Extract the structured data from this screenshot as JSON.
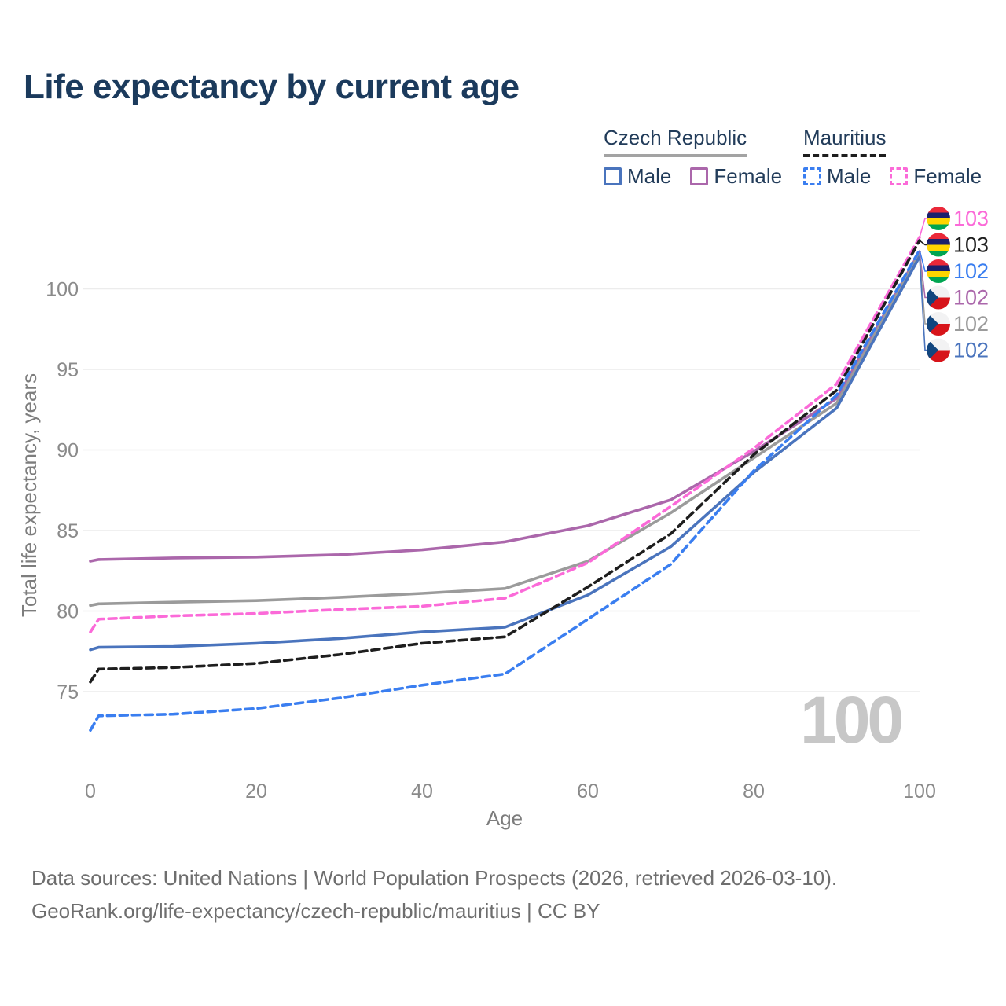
{
  "title": "Life expectancy by current age",
  "legend": {
    "groups": [
      {
        "country": "Czech Republic",
        "line_style": "solid",
        "underline_color": "#a3a3a3",
        "items": [
          {
            "label": "Male",
            "color": "#4a74bd",
            "style": "solid"
          },
          {
            "label": "Female",
            "color": "#ab67ab",
            "style": "solid"
          }
        ]
      },
      {
        "country": "Mauritius",
        "line_style": "dashed",
        "underline_color": "#1e1e1e",
        "items": [
          {
            "label": "Male",
            "color": "#3a7ef0",
            "style": "dashed"
          },
          {
            "label": "Female",
            "color": "#fb6ad8",
            "style": "dashed"
          }
        ]
      }
    ]
  },
  "watermark": "100",
  "footer": {
    "line1": "Data sources: United Nations | World Population Prospects (2026, retrieved 2026-03-10).",
    "line2": "GeoRank.org/life-expectancy/czech-republic/mauritius | CC BY"
  },
  "chart_data": {
    "type": "line",
    "title": "Life expectancy by current age",
    "xlabel": "Age",
    "ylabel": "Total life expectancy, years",
    "xlim": [
      0,
      100
    ],
    "ylim": [
      72,
      104
    ],
    "x_ticks": [
      0,
      20,
      40,
      60,
      80,
      100
    ],
    "y_ticks": [
      75,
      80,
      85,
      90,
      95,
      100
    ],
    "grid": true,
    "legend_position": "top-right",
    "x": [
      0,
      1,
      10,
      20,
      30,
      40,
      50,
      60,
      70,
      80,
      90,
      100
    ],
    "series": [
      {
        "name": "Czech Republic Female",
        "country": "Czech Republic",
        "sex": "Female",
        "style": "solid",
        "color": "#ab67ab",
        "end_label": "102",
        "values": [
          83.1,
          83.2,
          83.3,
          83.35,
          83.5,
          83.8,
          84.3,
          85.3,
          86.9,
          89.9,
          93.2,
          102.3
        ]
      },
      {
        "name": "Czech Republic Both sexes",
        "country": "Czech Republic",
        "sex": "Both",
        "style": "solid",
        "color": "#9b9b9b",
        "end_label": "102",
        "values": [
          80.35,
          80.45,
          80.55,
          80.65,
          80.85,
          81.1,
          81.4,
          83.1,
          86.1,
          89.5,
          92.9,
          102.2
        ]
      },
      {
        "name": "Czech Republic Male",
        "country": "Czech Republic",
        "sex": "Male",
        "style": "solid",
        "color": "#4a74bd",
        "end_label": "102",
        "values": [
          77.6,
          77.75,
          77.8,
          78.0,
          78.3,
          78.7,
          79.0,
          81.0,
          84.0,
          88.6,
          92.6,
          102.0
        ]
      },
      {
        "name": "Mauritius Female",
        "country": "Mauritius",
        "sex": "Female",
        "style": "dashed",
        "color": "#fb6ad8",
        "end_label": "103",
        "values": [
          78.7,
          79.5,
          79.7,
          79.85,
          80.1,
          80.3,
          80.8,
          83.0,
          86.5,
          90.1,
          94.1,
          103.2
        ]
      },
      {
        "name": "Mauritius Both sexes",
        "country": "Mauritius",
        "sex": "Both",
        "style": "dashed",
        "color": "#1e1e1e",
        "end_label": "103",
        "values": [
          75.6,
          76.4,
          76.5,
          76.75,
          77.3,
          78.0,
          78.4,
          81.5,
          84.8,
          89.7,
          93.7,
          103.0
        ]
      },
      {
        "name": "Mauritius Male",
        "country": "Mauritius",
        "sex": "Male",
        "style": "dashed",
        "color": "#3a7ef0",
        "end_label": "102",
        "values": [
          72.6,
          73.5,
          73.6,
          73.95,
          74.6,
          75.4,
          76.1,
          79.5,
          82.9,
          88.7,
          93.4,
          102.4
        ]
      }
    ],
    "right_labels": [
      {
        "flag": "mauritius",
        "text": "103",
        "color": "#fb6ad8",
        "series": "Mauritius Female"
      },
      {
        "flag": "mauritius",
        "text": "103",
        "color": "#1e1e1e",
        "series": "Mauritius Both sexes"
      },
      {
        "flag": "mauritius",
        "text": "102",
        "color": "#3a7ef0",
        "series": "Mauritius Male"
      },
      {
        "flag": "czech",
        "text": "102",
        "color": "#ab67ab",
        "series": "Czech Republic Female"
      },
      {
        "flag": "czech",
        "text": "102",
        "color": "#9b9b9b",
        "series": "Czech Republic Both sexes"
      },
      {
        "flag": "czech",
        "text": "102",
        "color": "#4a74bd",
        "series": "Czech Republic Male"
      }
    ],
    "flag_colors": {
      "mauritius": [
        "#EA2839",
        "#1A206D",
        "#FFD500",
        "#00A551"
      ],
      "czech": {
        "white": "#f2f2f3",
        "red": "#D7141A",
        "blue": "#11457E"
      }
    }
  }
}
